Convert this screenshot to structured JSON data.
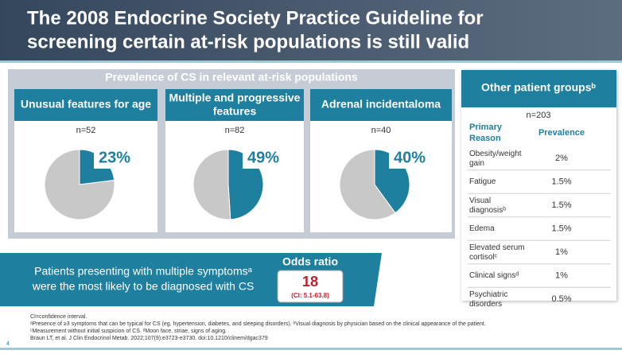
{
  "header": {
    "title_lines": [
      "The 2008 Endocrine Society Practice Guideline for",
      "screening certain at-risk populations is still valid"
    ]
  },
  "panel_title": "Prevalence of CS in relevant at-risk populations",
  "chart_data": [
    {
      "type": "pie",
      "title": "Unusual features for age",
      "subtitle": "n=52",
      "categories": [
        null,
        null
      ],
      "values": [
        23,
        77
      ],
      "value_labels": [
        "23%",
        null
      ],
      "colors": [
        "#1f7f9e",
        "#c8c8c8"
      ]
    },
    {
      "type": "pie",
      "title": "Multiple and progressive features",
      "subtitle": "n=82",
      "categories": [
        null,
        null
      ],
      "values": [
        49,
        51
      ],
      "value_labels": [
        "49%",
        null
      ],
      "colors": [
        "#1f7f9e",
        "#c8c8c8"
      ]
    },
    {
      "type": "pie",
      "title": "Adrenal incidentaloma",
      "subtitle": "n=40",
      "categories": [
        null,
        null
      ],
      "values": [
        40,
        60
      ],
      "value_labels": [
        "40%",
        null
      ],
      "colors": [
        "#1f7f9e",
        "#c8c8c8"
      ]
    }
  ],
  "other_groups": {
    "title": "Other patient groupsᵇ",
    "n": "n=203",
    "columns": [
      "Primary Reason",
      "Prevalence"
    ],
    "rows": [
      [
        "Obesity/weight gain",
        "2%"
      ],
      [
        "Fatigue",
        "1.5%"
      ],
      [
        "Visual diagnosisᵇ",
        "1.5%"
      ],
      [
        "Edema",
        "1.5%"
      ],
      [
        "Elevated serum cortisolᶜ",
        "1%"
      ],
      [
        "Clinical signsᵈ",
        "1%"
      ],
      [
        "Psychiatric disorders",
        "0.5%"
      ]
    ]
  },
  "banner": {
    "lines": [
      "Patients presenting with multiple symptomsᵃ",
      "were the most likely to be diagnosed with CS"
    ],
    "odds_label": "Odds ratio",
    "odds_value": "18",
    "odds_ci": "(CI: 5.1-63.8)"
  },
  "footnotes": [
    "CI=confidence interval.",
    "ᵃPresence of ≥3 symptoms that can be typical for CS (eg, hypertension, diabetes, and sleeping disorders). ᵇVisual diagnosis by physician based on the clinical appearance of the patient.",
    "ᶜMeasurement without initial suspicion of CS. ᵈMoon face, striae, signs of aging.",
    "Braun LT, et al. J Clin Endocrinol Metab. 2022;107(9):e3723-e3730. doi:10.1210/clinem/dgac379"
  ],
  "page_number": "4"
}
